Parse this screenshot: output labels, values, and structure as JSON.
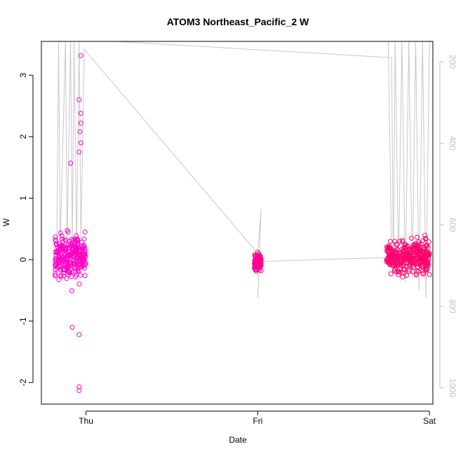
{
  "chart_data": {
    "type": "scatter",
    "title": "ATOM3 Northeast_Pacific_2 W",
    "xlabel": "Date",
    "ylabel": "W",
    "xlim": [
      -0.26,
      2.02
    ],
    "ylim": [
      -2.35,
      3.55
    ],
    "x_ticks": [
      {
        "value": 0,
        "label": "Thu"
      },
      {
        "value": 1,
        "label": "Fri"
      },
      {
        "value": 2,
        "label": "Sat"
      }
    ],
    "y_ticks": [
      {
        "value": 3,
        "label": "3"
      },
      {
        "value": 2,
        "label": "2"
      },
      {
        "value": 1,
        "label": "1"
      },
      {
        "value": 0,
        "label": "0"
      },
      {
        "value": -1,
        "label": "-1"
      },
      {
        "value": -2,
        "label": "-2"
      }
    ],
    "y2_ticks": [
      {
        "value": 200,
        "label": "200"
      },
      {
        "value": 400,
        "label": "400"
      },
      {
        "value": 600,
        "label": "600"
      },
      {
        "value": 800,
        "label": "800"
      },
      {
        "value": 1000,
        "label": "1000"
      }
    ],
    "y2lim": [
      1040,
      150
    ],
    "y2_reversed": true,
    "colors": {
      "points_early": "#ff00cc",
      "points_late": "#ff0066",
      "depth_line": "#c8c8c8",
      "secondary_axis": "#c0c0c0"
    },
    "point_clusters": [
      {
        "x_start": -0.18,
        "x_end": 0.0,
        "y_center": 0.05,
        "y_min": -1.25,
        "y_max": 1.55,
        "n": 260
      },
      {
        "x_start": 0.98,
        "x_end": 1.02,
        "y_center": -0.05,
        "y_min": -0.6,
        "y_max": 0.52,
        "n": 120
      },
      {
        "x_start": 1.75,
        "x_end": 2.0,
        "y_center": 0.05,
        "y_min": -1.0,
        "y_max": 1.0,
        "n": 330
      }
    ],
    "outlier_points": [
      {
        "x": -0.03,
        "y": 3.32
      },
      {
        "x": -0.04,
        "y": 2.6
      },
      {
        "x": -0.03,
        "y": 2.38
      },
      {
        "x": -0.03,
        "y": 2.22
      },
      {
        "x": -0.035,
        "y": 2.08
      },
      {
        "x": -0.03,
        "y": 1.9
      },
      {
        "x": -0.04,
        "y": 1.75
      },
      {
        "x": -0.04,
        "y": -1.22
      },
      {
        "x": -0.04,
        "y": -2.07
      },
      {
        "x": -0.04,
        "y": -2.13
      },
      {
        "x": -0.09,
        "y": 1.57
      },
      {
        "x": -0.08,
        "y": -1.1
      }
    ],
    "depth_profile": [
      {
        "x": -0.17,
        "depth": 660
      },
      {
        "x": -0.16,
        "depth": 150
      },
      {
        "x": -0.15,
        "depth": 650
      },
      {
        "x": -0.12,
        "depth": 150
      },
      {
        "x": -0.11,
        "depth": 640
      },
      {
        "x": -0.09,
        "depth": 150
      },
      {
        "x": -0.08,
        "depth": 650
      },
      {
        "x": -0.07,
        "depth": 150
      },
      {
        "x": -0.055,
        "depth": 660
      },
      {
        "x": -0.04,
        "depth": 150
      },
      {
        "x": -0.03,
        "depth": 640
      },
      {
        "x": -0.01,
        "depth": 170
      },
      {
        "x": 1.0,
        "depth": 670
      },
      {
        "x": 1.02,
        "depth": 560
      },
      {
        "x": 1.0,
        "depth": 780
      },
      {
        "x": 1.01,
        "depth": 690
      },
      {
        "x": 1.78,
        "depth": 680
      },
      {
        "x": 1.76,
        "depth": 150
      },
      {
        "x": 0.17,
        "depth": 150
      },
      {
        "x": 1.78,
        "depth": 190
      },
      {
        "x": 1.79,
        "depth": 720
      },
      {
        "x": 1.8,
        "depth": 150
      },
      {
        "x": 1.82,
        "depth": 700
      },
      {
        "x": 1.84,
        "depth": 150
      },
      {
        "x": 1.86,
        "depth": 740
      },
      {
        "x": 1.88,
        "depth": 150
      },
      {
        "x": 1.9,
        "depth": 730
      },
      {
        "x": 1.92,
        "depth": 150
      },
      {
        "x": 1.94,
        "depth": 760
      },
      {
        "x": 1.96,
        "depth": 150
      },
      {
        "x": 1.98,
        "depth": 780
      },
      {
        "x": 2.0,
        "depth": 150
      }
    ]
  }
}
